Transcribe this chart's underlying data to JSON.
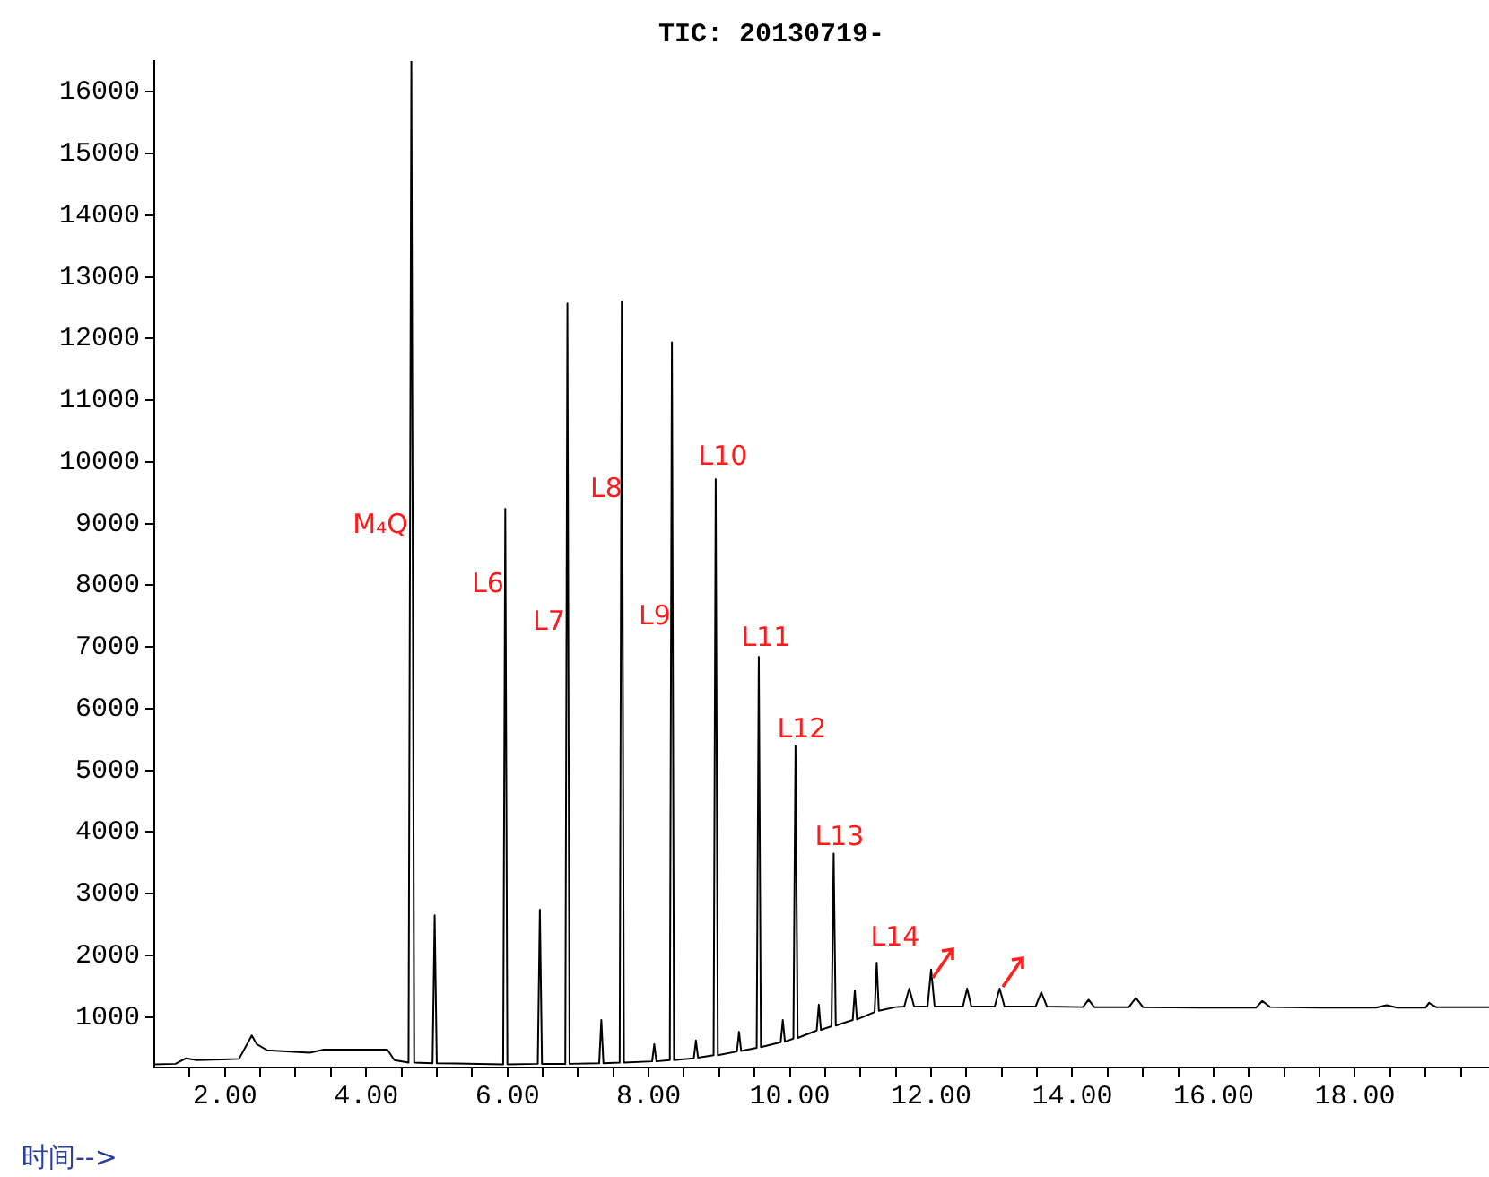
{
  "chart_data": {
    "type": "line",
    "title": "TIC: 20130719-",
    "xlabel": "时间-->",
    "color": "#000000",
    "marker": "none",
    "grid": false,
    "x": [
      1.0,
      1.3,
      1.45,
      1.6,
      2.2,
      2.38,
      2.45,
      2.6,
      3.2,
      3.4,
      4.3,
      4.4,
      4.6,
      4.64,
      4.68,
      4.94,
      4.97,
      5.0,
      5.94,
      5.97,
      6.0,
      6.43,
      6.46,
      6.49,
      6.82,
      6.85,
      6.88,
      7.3,
      7.33,
      7.36,
      7.59,
      7.62,
      7.65,
      8.05,
      8.08,
      8.11,
      8.3,
      8.33,
      8.36,
      8.64,
      8.67,
      8.7,
      8.92,
      8.95,
      8.98,
      9.25,
      9.28,
      9.31,
      9.53,
      9.56,
      9.59,
      9.87,
      9.9,
      9.93,
      10.05,
      10.08,
      10.11,
      10.38,
      10.41,
      10.44,
      10.59,
      10.62,
      10.65,
      10.89,
      10.92,
      10.95,
      11.2,
      11.23,
      11.26,
      11.5,
      11.62,
      11.69,
      11.76,
      11.95,
      12.0,
      12.05,
      12.45,
      12.51,
      12.57,
      12.9,
      12.97,
      13.04,
      13.48,
      13.56,
      13.64,
      14.15,
      14.23,
      14.31,
      14.8,
      14.9,
      15.0,
      15.8,
      16.6,
      16.69,
      16.8,
      17.5,
      18.3,
      18.45,
      18.6,
      19.0,
      19.05,
      19.15,
      19.9
    ],
    "values": [
      230,
      240,
      330,
      300,
      320,
      700,
      560,
      460,
      420,
      470,
      470,
      300,
      260,
      16500,
      260,
      250,
      2650,
      250,
      230,
      9240,
      230,
      240,
      2740,
      240,
      240,
      12570,
      240,
      250,
      950,
      250,
      260,
      12600,
      260,
      280,
      560,
      280,
      300,
      11940,
      300,
      330,
      620,
      340,
      380,
      9720,
      380,
      440,
      760,
      450,
      500,
      6840,
      510,
      590,
      950,
      600,
      650,
      5390,
      660,
      780,
      1200,
      790,
      850,
      3650,
      860,
      950,
      1430,
      960,
      1080,
      1880,
      1100,
      1160,
      1170,
      1460,
      1170,
      1170,
      1770,
      1170,
      1170,
      1460,
      1170,
      1170,
      1460,
      1170,
      1170,
      1400,
      1170,
      1160,
      1280,
      1160,
      1160,
      1310,
      1160,
      1150,
      1150,
      1260,
      1160,
      1150,
      1150,
      1190,
      1150,
      1150,
      1230,
      1160,
      1160
    ],
    "xlim": [
      1.0,
      19.9
    ],
    "ylim": [
      180,
      16500
    ],
    "xticks": [
      {
        "value": 1.5,
        "label": null
      },
      {
        "value": 2,
        "label": "2.00"
      },
      {
        "value": 2.5,
        "label": null
      },
      {
        "value": 3,
        "label": null
      },
      {
        "value": 3.5,
        "label": null
      },
      {
        "value": 4,
        "label": "4.00"
      },
      {
        "value": 4.5,
        "label": null
      },
      {
        "value": 5,
        "label": null
      },
      {
        "value": 5.5,
        "label": null
      },
      {
        "value": 6,
        "label": "6.00"
      },
      {
        "value": 6.5,
        "label": null
      },
      {
        "value": 7,
        "label": null
      },
      {
        "value": 7.5,
        "label": null
      },
      {
        "value": 8,
        "label": "8.00"
      },
      {
        "value": 8.5,
        "label": null
      },
      {
        "value": 9,
        "label": null
      },
      {
        "value": 9.5,
        "label": null
      },
      {
        "value": 10,
        "label": "10.00"
      },
      {
        "value": 10.5,
        "label": null
      },
      {
        "value": 11,
        "label": null
      },
      {
        "value": 11.5,
        "label": null
      },
      {
        "value": 12,
        "label": "12.00"
      },
      {
        "value": 12.5,
        "label": null
      },
      {
        "value": 13,
        "label": null
      },
      {
        "value": 13.5,
        "label": null
      },
      {
        "value": 14,
        "label": "14.00"
      },
      {
        "value": 14.5,
        "label": null
      },
      {
        "value": 15,
        "label": null
      },
      {
        "value": 15.5,
        "label": null
      },
      {
        "value": 16,
        "label": "16.00"
      },
      {
        "value": 16.5,
        "label": null
      },
      {
        "value": 17,
        "label": null
      },
      {
        "value": 17.5,
        "label": null
      },
      {
        "value": 18,
        "label": "18.00"
      },
      {
        "value": 18.5,
        "label": null
      },
      {
        "value": 19,
        "label": null
      },
      {
        "value": 19.5,
        "label": null
      }
    ],
    "yticks": [
      1000,
      2000,
      3000,
      4000,
      5000,
      6000,
      7000,
      8000,
      9000,
      10000,
      11000,
      12000,
      13000,
      14000,
      15000,
      16000
    ],
    "annotations": [
      "M₄Q",
      "L6",
      "L7",
      "L8",
      "L9",
      "L10",
      "L11",
      "L12",
      "L13",
      "L14"
    ]
  }
}
